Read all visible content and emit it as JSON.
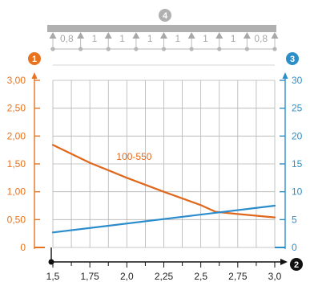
{
  "colors": {
    "left_axis": "#e8731e",
    "right_axis": "#2a8fc9",
    "grid": "#b4b4b4",
    "beam": "#b0b0b0",
    "beam_text": "#a9a9a9",
    "series_orange": "#e0671b",
    "series_blue": "#2a8ccc",
    "x_axis": "#111111"
  },
  "badges": {
    "left": "1",
    "x": "2",
    "right": "3",
    "beam": "4"
  },
  "beam": {
    "span_labels": [
      "0,8",
      "1",
      "1",
      "1",
      "1",
      "1",
      "1",
      "0,8"
    ],
    "support_count": 7
  },
  "chart_data": {
    "type": "line",
    "title": "",
    "xlabel": "",
    "ylabel": "",
    "x_ticks": [
      "1,5",
      "1,75",
      "2,0",
      "2,25",
      "2,5",
      "2,75",
      "3,0"
    ],
    "y_left_ticks": [
      "0",
      "0,50",
      "1,00",
      "1,50",
      "2,00",
      "2,50",
      "3,00"
    ],
    "y_right_ticks": [
      "0",
      "5",
      "10",
      "15",
      "20",
      "25",
      "30"
    ],
    "xlim": [
      1.5,
      3.0
    ],
    "ylim_left": [
      0,
      3.0
    ],
    "ylim_right": [
      0,
      30
    ],
    "grid": true,
    "series": [
      {
        "name": "100-550",
        "axis": "left",
        "color": "#e0671b",
        "x": [
          1.5,
          1.75,
          2.0,
          2.25,
          2.5,
          2.6,
          2.75,
          3.0
        ],
        "y": [
          1.84,
          1.52,
          1.25,
          1.0,
          0.76,
          0.64,
          0.6,
          0.54
        ]
      },
      {
        "axis": "right",
        "color": "#2a8ccc",
        "x": [
          1.5,
          3.0
        ],
        "y": [
          2.7,
          7.5
        ]
      }
    ]
  }
}
